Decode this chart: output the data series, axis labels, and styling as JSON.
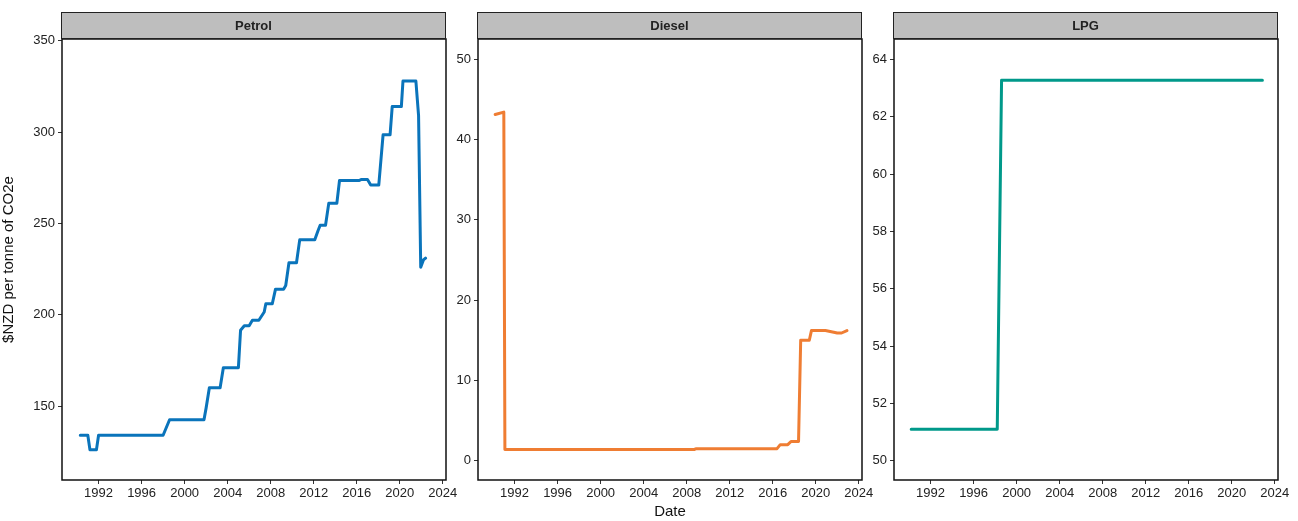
{
  "chart_data": [
    {
      "type": "line",
      "title": "Petrol",
      "ylabel": "$NZD per tonne of CO2e",
      "xlim": [
        1988.6,
        2024.3
      ],
      "xticks": [
        1992,
        1996,
        2000,
        2004,
        2008,
        2012,
        2016,
        2020,
        2024
      ],
      "ylim": [
        109.5,
        351
      ],
      "yticks": [
        150,
        200,
        250,
        300,
        350
      ],
      "grid": false,
      "legend": false,
      "series": [
        {
          "color": "#0a74bb",
          "x": [
            1990.3,
            1991.0,
            1991.2,
            1991.8,
            1992.0,
            1998.0,
            1998.6,
            2001.8,
            2002.0,
            2002.3,
            2003.3,
            2003.6,
            2005.0,
            2005.2,
            2005.55,
            2006.0,
            2006.3,
            2006.9,
            2007.4,
            2007.55,
            2008.15,
            2008.45,
            2009.2,
            2009.4,
            2009.7,
            2010.4,
            2010.7,
            2012.1,
            2012.4,
            2012.6,
            2013.1,
            2013.4,
            2014.15,
            2014.4,
            2016.2,
            2016.4,
            2017.0,
            2017.3,
            2018.05,
            2018.45,
            2019.1,
            2019.3,
            2020.15,
            2020.3,
            2021.5,
            2021.75,
            2021.95,
            2022.2,
            2022.4
          ],
          "values": [
            134,
            134,
            126,
            126,
            134,
            134,
            142.5,
            142.5,
            149,
            160,
            160,
            171,
            171,
            191.5,
            194,
            194,
            197,
            197,
            201.5,
            206,
            206,
            214,
            214,
            216,
            228.5,
            228.5,
            241,
            241,
            246,
            249,
            249,
            261,
            261,
            273.5,
            273.5,
            274,
            274,
            271,
            271,
            298.5,
            298.5,
            314,
            314,
            328,
            328,
            309,
            226,
            230,
            231
          ]
        }
      ]
    },
    {
      "type": "line",
      "title": "Diesel",
      "xlabel": "Date",
      "xlim": [
        1988.6,
        2024.3
      ],
      "xticks": [
        1992,
        1996,
        2000,
        2004,
        2008,
        2012,
        2016,
        2020,
        2024
      ],
      "ylim": [
        -2.4,
        52.5
      ],
      "yticks": [
        0,
        10,
        20,
        30,
        40,
        50
      ],
      "grid": false,
      "legend": false,
      "series": [
        {
          "color": "#ef7d33",
          "x": [
            1990.2,
            1991.0,
            1991.1,
            2008.7,
            2008.9,
            2016.4,
            2016.7,
            2017.4,
            2017.7,
            2018.4,
            2018.6,
            2019.4,
            2019.6,
            2020.9,
            2022.0,
            2022.4,
            2022.9
          ],
          "values": [
            43.1,
            43.4,
            1.4,
            1.4,
            1.5,
            1.5,
            2.0,
            2.0,
            2.4,
            2.4,
            15.0,
            15.0,
            16.2,
            16.2,
            15.9,
            15.9,
            16.2
          ]
        }
      ]
    },
    {
      "type": "line",
      "title": "LPG",
      "xlim": [
        1988.6,
        2024.3
      ],
      "xticks": [
        1992,
        1996,
        2000,
        2004,
        2008,
        2012,
        2016,
        2020,
        2024
      ],
      "ylim": [
        49.33,
        64.71
      ],
      "yticks": [
        50,
        52,
        54,
        56,
        58,
        60,
        62,
        64
      ],
      "grid": false,
      "legend": false,
      "series": [
        {
          "color": "#00998a",
          "x": [
            1990.2,
            1998.2,
            1998.6,
            2022.85
          ],
          "values": [
            51.1,
            51.1,
            63.27,
            63.27
          ]
        }
      ]
    }
  ]
}
